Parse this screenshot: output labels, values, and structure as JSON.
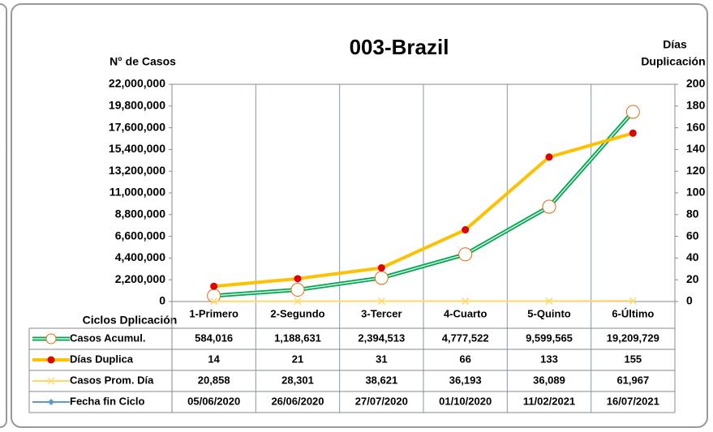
{
  "chart_data": {
    "type": "line",
    "title": "003-Brazil",
    "y_label": "N° de Casos",
    "y2_label": [
      "Días",
      "Duplicación"
    ],
    "table_header": "Ciclos Dplicación",
    "categories": [
      "1-Primero",
      "2-Segundo",
      "3-Tercer",
      "4-Cuarto",
      "5-Quinto",
      "6-Último"
    ],
    "series": [
      {
        "name": "Casos Acumul.",
        "color": "#00a651",
        "marker": "circle",
        "axis": "y",
        "values": [
          584016,
          1188631,
          2394513,
          4777522,
          9599565,
          19209729
        ],
        "value_labels": [
          "584,016",
          "1,188,631",
          "2,394,513",
          "4,777,522",
          "9,599,565",
          "19,209,729"
        ]
      },
      {
        "name": "Días Duplica",
        "color": "#ffc000",
        "marker": "dot",
        "axis": "y2",
        "values": [
          14,
          21,
          31,
          66,
          133,
          155
        ]
      },
      {
        "name": "Casos Prom. Día",
        "color": "#ffd966",
        "marker": "x",
        "axis": "y",
        "values": [
          20858,
          28301,
          38621,
          36193,
          36089,
          61967
        ],
        "value_labels": [
          "20,858",
          "28,301",
          "38,621",
          "36,193",
          "36,089",
          "61,967"
        ]
      }
    ],
    "dates": {
      "name": "Fecha fin Ciclo",
      "color": "#5b9bd5",
      "values": [
        "05/06/2020",
        "26/06/2020",
        "27/07/2020",
        "01/10/2020",
        "11/02/2021",
        "16/07/2021"
      ]
    },
    "ylim": [
      0,
      22000000
    ],
    "yticks": [
      0,
      {
        "value": 2200000,
        "label": "2,200,000"
      },
      {
        "value": 4400000,
        "label": "4,400,000"
      },
      {
        "value": 6600000,
        "label": "6,600,000"
      },
      {
        "value": 8800000,
        "label": "8,800,000"
      },
      {
        "value": 11000000,
        "label": "11,000,000"
      },
      {
        "value": 13200000,
        "label": "13,200,000"
      },
      {
        "value": 15400000,
        "label": "15,400,000"
      },
      {
        "value": 17600000,
        "label": "17,600,000"
      },
      {
        "value": 19800000,
        "label": "19,800,000"
      },
      {
        "value": 22000000,
        "label": "22,000,000"
      }
    ],
    "y2lim": [
      0,
      200
    ],
    "y2ticks": [
      0,
      20,
      40,
      60,
      80,
      100,
      120,
      140,
      160,
      180,
      200
    ]
  }
}
